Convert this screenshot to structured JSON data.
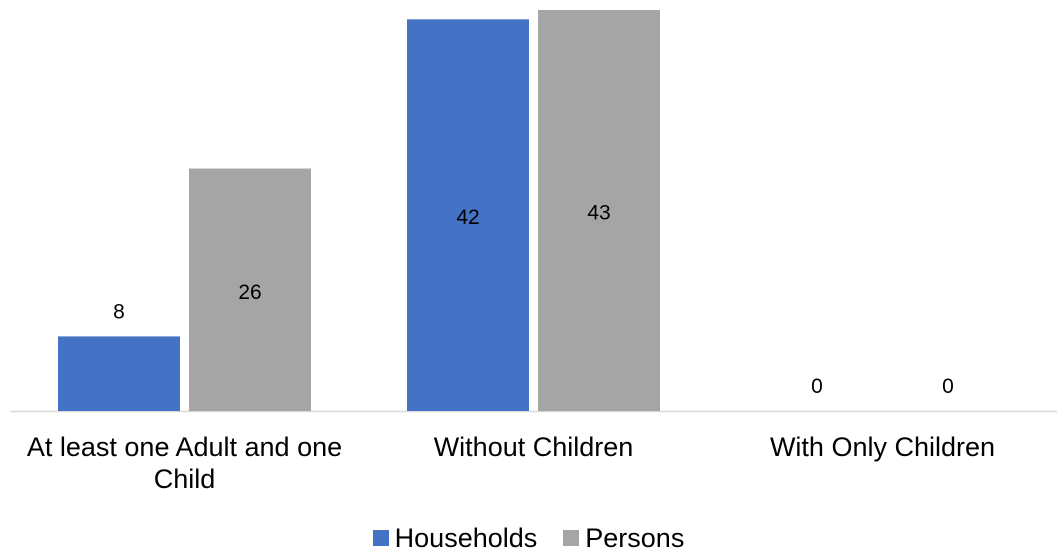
{
  "chart_data": {
    "type": "bar",
    "categories": [
      "At least one Adult and one Child",
      "Without Children",
      "With Only Children"
    ],
    "series": [
      {
        "name": "Households",
        "values": [
          8,
          42,
          0
        ],
        "color": "#4472C4"
      },
      {
        "name": "Persons",
        "values": [
          26,
          43,
          0
        ],
        "color": "#A5A5A5"
      }
    ],
    "ylim": [
      0,
      43
    ],
    "grid": false,
    "legend_position": "bottom"
  }
}
